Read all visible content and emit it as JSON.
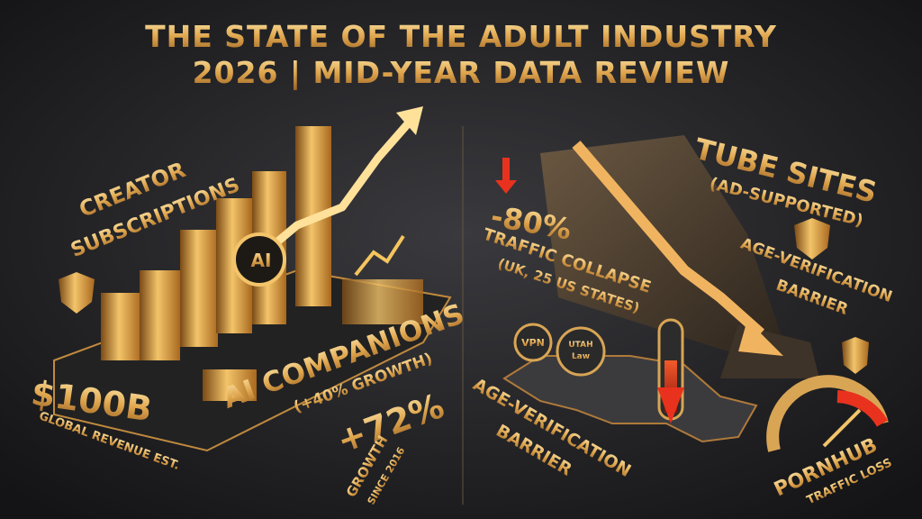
{
  "header": {
    "title_lines": [
      "THE STATE OF THE ADULT INDUSTRY",
      "2026 | MID-YEAR DATA REVIEW"
    ]
  },
  "left_panel": {
    "segment_title": [
      "CREATOR",
      "SUBSCRIPTIONS"
    ],
    "ai_badge": "AI",
    "ai_companions": "AI COMPANIONS",
    "ai_growth": "(+40% GROWTH)",
    "revenue": "$100B",
    "revenue_caption": "GLOBAL REVENUE EST.",
    "growth": "+72%",
    "growth_caption": [
      "GROWTH",
      "SINCE 2016"
    ]
  },
  "right_panel": {
    "segment_title": "TUBE SITES",
    "segment_subtitle": "(AD-SUPPORTED)",
    "collapse": "-80%",
    "collapse_caption": [
      "TRAFFIC COLLAPSE",
      "(UK, 25 US STATES)"
    ],
    "barrier_top": [
      "AGE-VERIFICATION",
      "BARRIER"
    ],
    "map_pins": [
      "VPN",
      "UTAH",
      "Law"
    ],
    "barrier_bottom": [
      "AGE-VERIFICATION",
      "BARRIER"
    ],
    "gauge_label": "PORNHUB",
    "gauge_caption": "TRAFFIC LOSS"
  }
}
